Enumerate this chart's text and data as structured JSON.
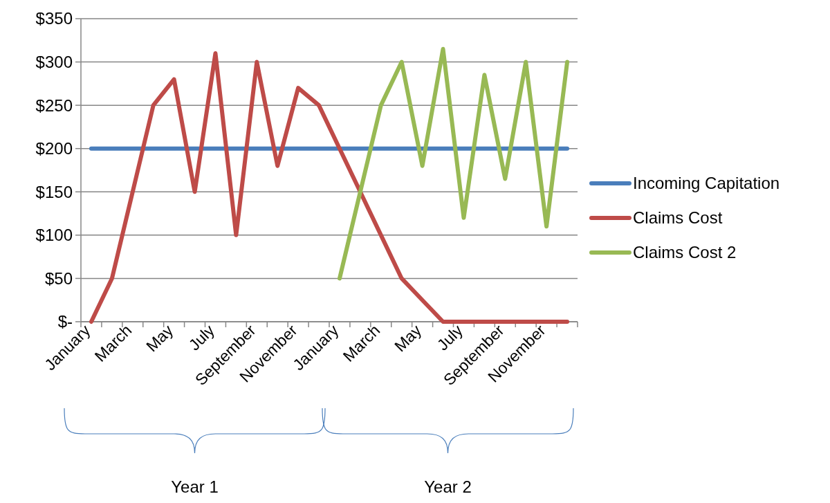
{
  "chart_data": {
    "type": "line",
    "categories": [
      "January",
      null,
      "March",
      null,
      "May",
      null,
      "July",
      null,
      "September",
      null,
      "November",
      null,
      "January",
      null,
      "March",
      null,
      "May",
      null,
      "July",
      null,
      "September",
      null,
      "November",
      null
    ],
    "series": [
      {
        "name": "Incoming Capitation",
        "color": "#4a7ebb",
        "values": [
          200,
          200,
          200,
          200,
          200,
          200,
          200,
          200,
          200,
          200,
          200,
          200,
          200,
          200,
          200,
          200,
          200,
          200,
          200,
          200,
          200,
          200,
          200,
          200
        ]
      },
      {
        "name": "Claims Cost",
        "color": "#be4b48",
        "values": [
          0,
          50,
          150,
          250,
          280,
          150,
          310,
          100,
          300,
          180,
          270,
          250,
          200,
          150,
          100,
          50,
          25,
          0,
          0,
          0,
          0,
          0,
          0,
          0
        ]
      },
      {
        "name": "Claims Cost 2",
        "color": "#98b954",
        "values": [
          null,
          null,
          null,
          null,
          null,
          null,
          null,
          null,
          null,
          null,
          null,
          null,
          50,
          150,
          250,
          300,
          180,
          315,
          120,
          285,
          165,
          300,
          110,
          300
        ]
      }
    ],
    "ylim": [
      0,
      350
    ],
    "yticks": [
      {
        "value": 0,
        "label": "$-"
      },
      {
        "value": 50,
        "label": "$50"
      },
      {
        "value": 100,
        "label": "$100"
      },
      {
        "value": 150,
        "label": "$150"
      },
      {
        "value": 200,
        "label": "$200"
      },
      {
        "value": 250,
        "label": "$250"
      },
      {
        "value": 300,
        "label": "$300"
      },
      {
        "value": 350,
        "label": "$350"
      }
    ],
    "grid": "y",
    "legend": "right",
    "marker": "none",
    "line_style": "solid",
    "annotations": [
      "Year 1",
      "Year 2"
    ]
  }
}
